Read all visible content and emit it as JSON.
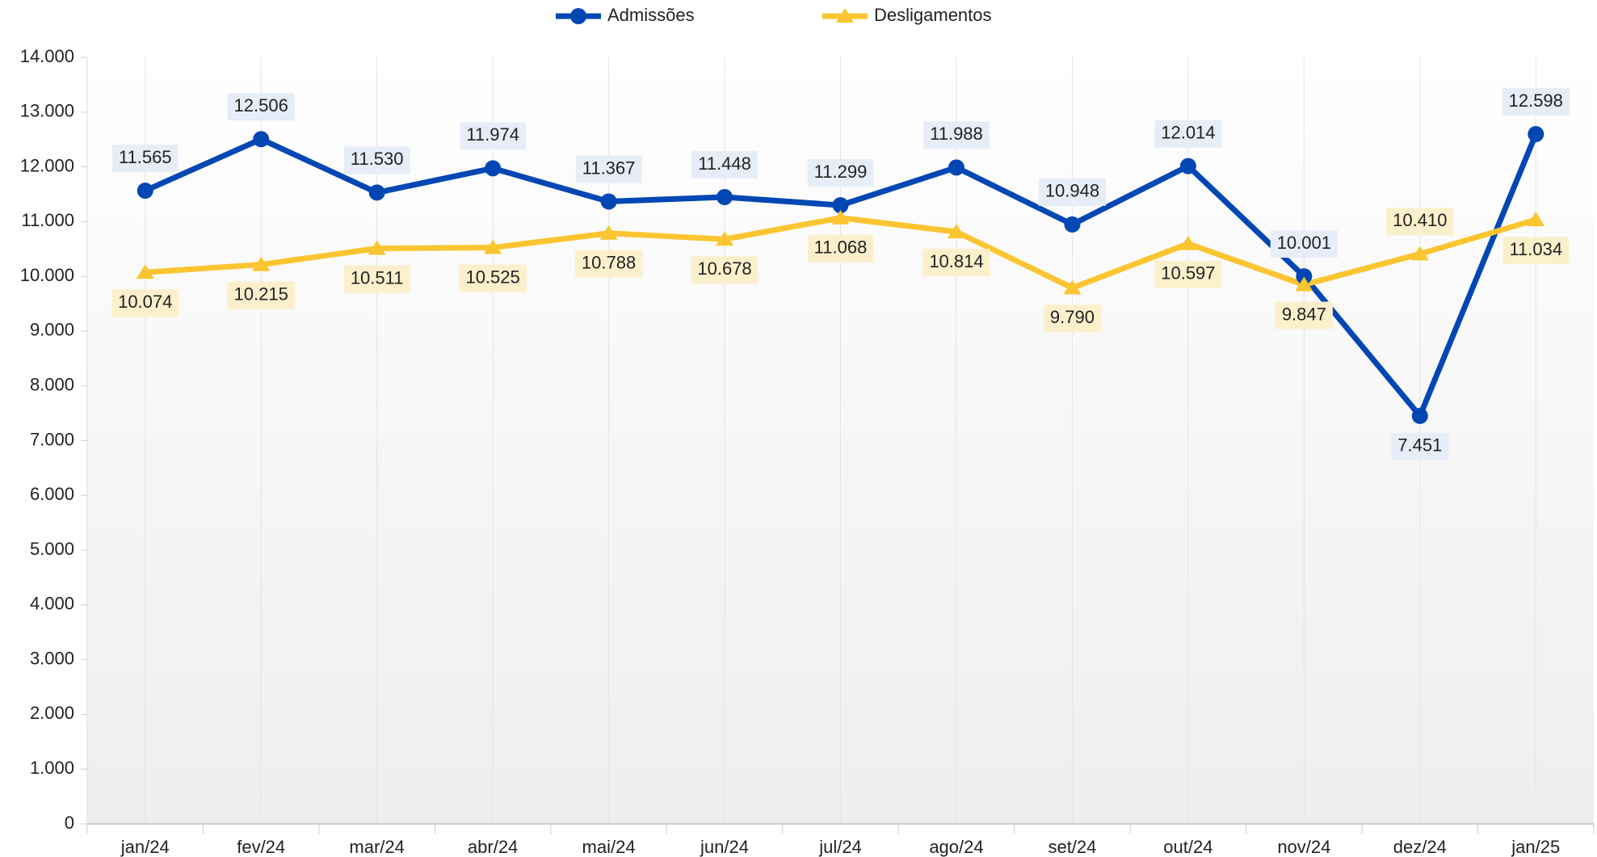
{
  "chart_data": {
    "type": "line",
    "categories": [
      "jan/24",
      "fev/24",
      "mar/24",
      "abr/24",
      "mai/24",
      "jun/24",
      "jul/24",
      "ago/24",
      "set/24",
      "out/24",
      "nov/24",
      "dez/24",
      "jan/25"
    ],
    "series": [
      {
        "name": "Admissões",
        "color": "#0047b3",
        "marker": "circle",
        "label_bg": "#e6edf8",
        "values": [
          11565,
          12506,
          11530,
          11974,
          11367,
          11448,
          11299,
          11988,
          10948,
          12014,
          10001,
          7451,
          12598
        ],
        "value_labels": [
          "11.565",
          "12.506",
          "11.530",
          "11.974",
          "11.367",
          "11.448",
          "11.299",
          "11.988",
          "10.948",
          "12.014",
          "10.001",
          "7.451",
          "12.598"
        ]
      },
      {
        "name": "Desligamentos",
        "color": "#fbc531",
        "marker": "triangle",
        "label_bg": "#fcf0cc",
        "values": [
          10074,
          10215,
          10511,
          10525,
          10788,
          10678,
          11068,
          10814,
          9790,
          10597,
          9847,
          10410,
          11034
        ],
        "value_labels": [
          "10.074",
          "10.215",
          "10.511",
          "10.525",
          "10.788",
          "10.678",
          "11.068",
          "10.814",
          "9.790",
          "10.597",
          "9.847",
          "10.410",
          "11.034"
        ]
      }
    ],
    "ylim": [
      0,
      14000
    ],
    "yticks": [
      0,
      {
        "value": 1000,
        "label": "1.000"
      },
      {
        "value": 2000,
        "label": "2.000"
      },
      {
        "value": 3000,
        "label": "3.000"
      },
      {
        "value": 4000,
        "label": "4.000"
      },
      {
        "value": 5000,
        "label": "5.000"
      },
      {
        "value": 6000,
        "label": "6.000"
      },
      {
        "value": 7000,
        "label": "7.000"
      },
      {
        "value": 8000,
        "label": "8.000"
      },
      {
        "value": 9000,
        "label": "9.000"
      },
      {
        "value": 10000,
        "label": "10.000"
      },
      {
        "value": 11000,
        "label": "11.000"
      },
      {
        "value": 12000,
        "label": "12.000"
      },
      {
        "value": 13000,
        "label": "13.000"
      },
      {
        "value": 14000,
        "label": "14.000"
      }
    ],
    "legend": "top"
  }
}
